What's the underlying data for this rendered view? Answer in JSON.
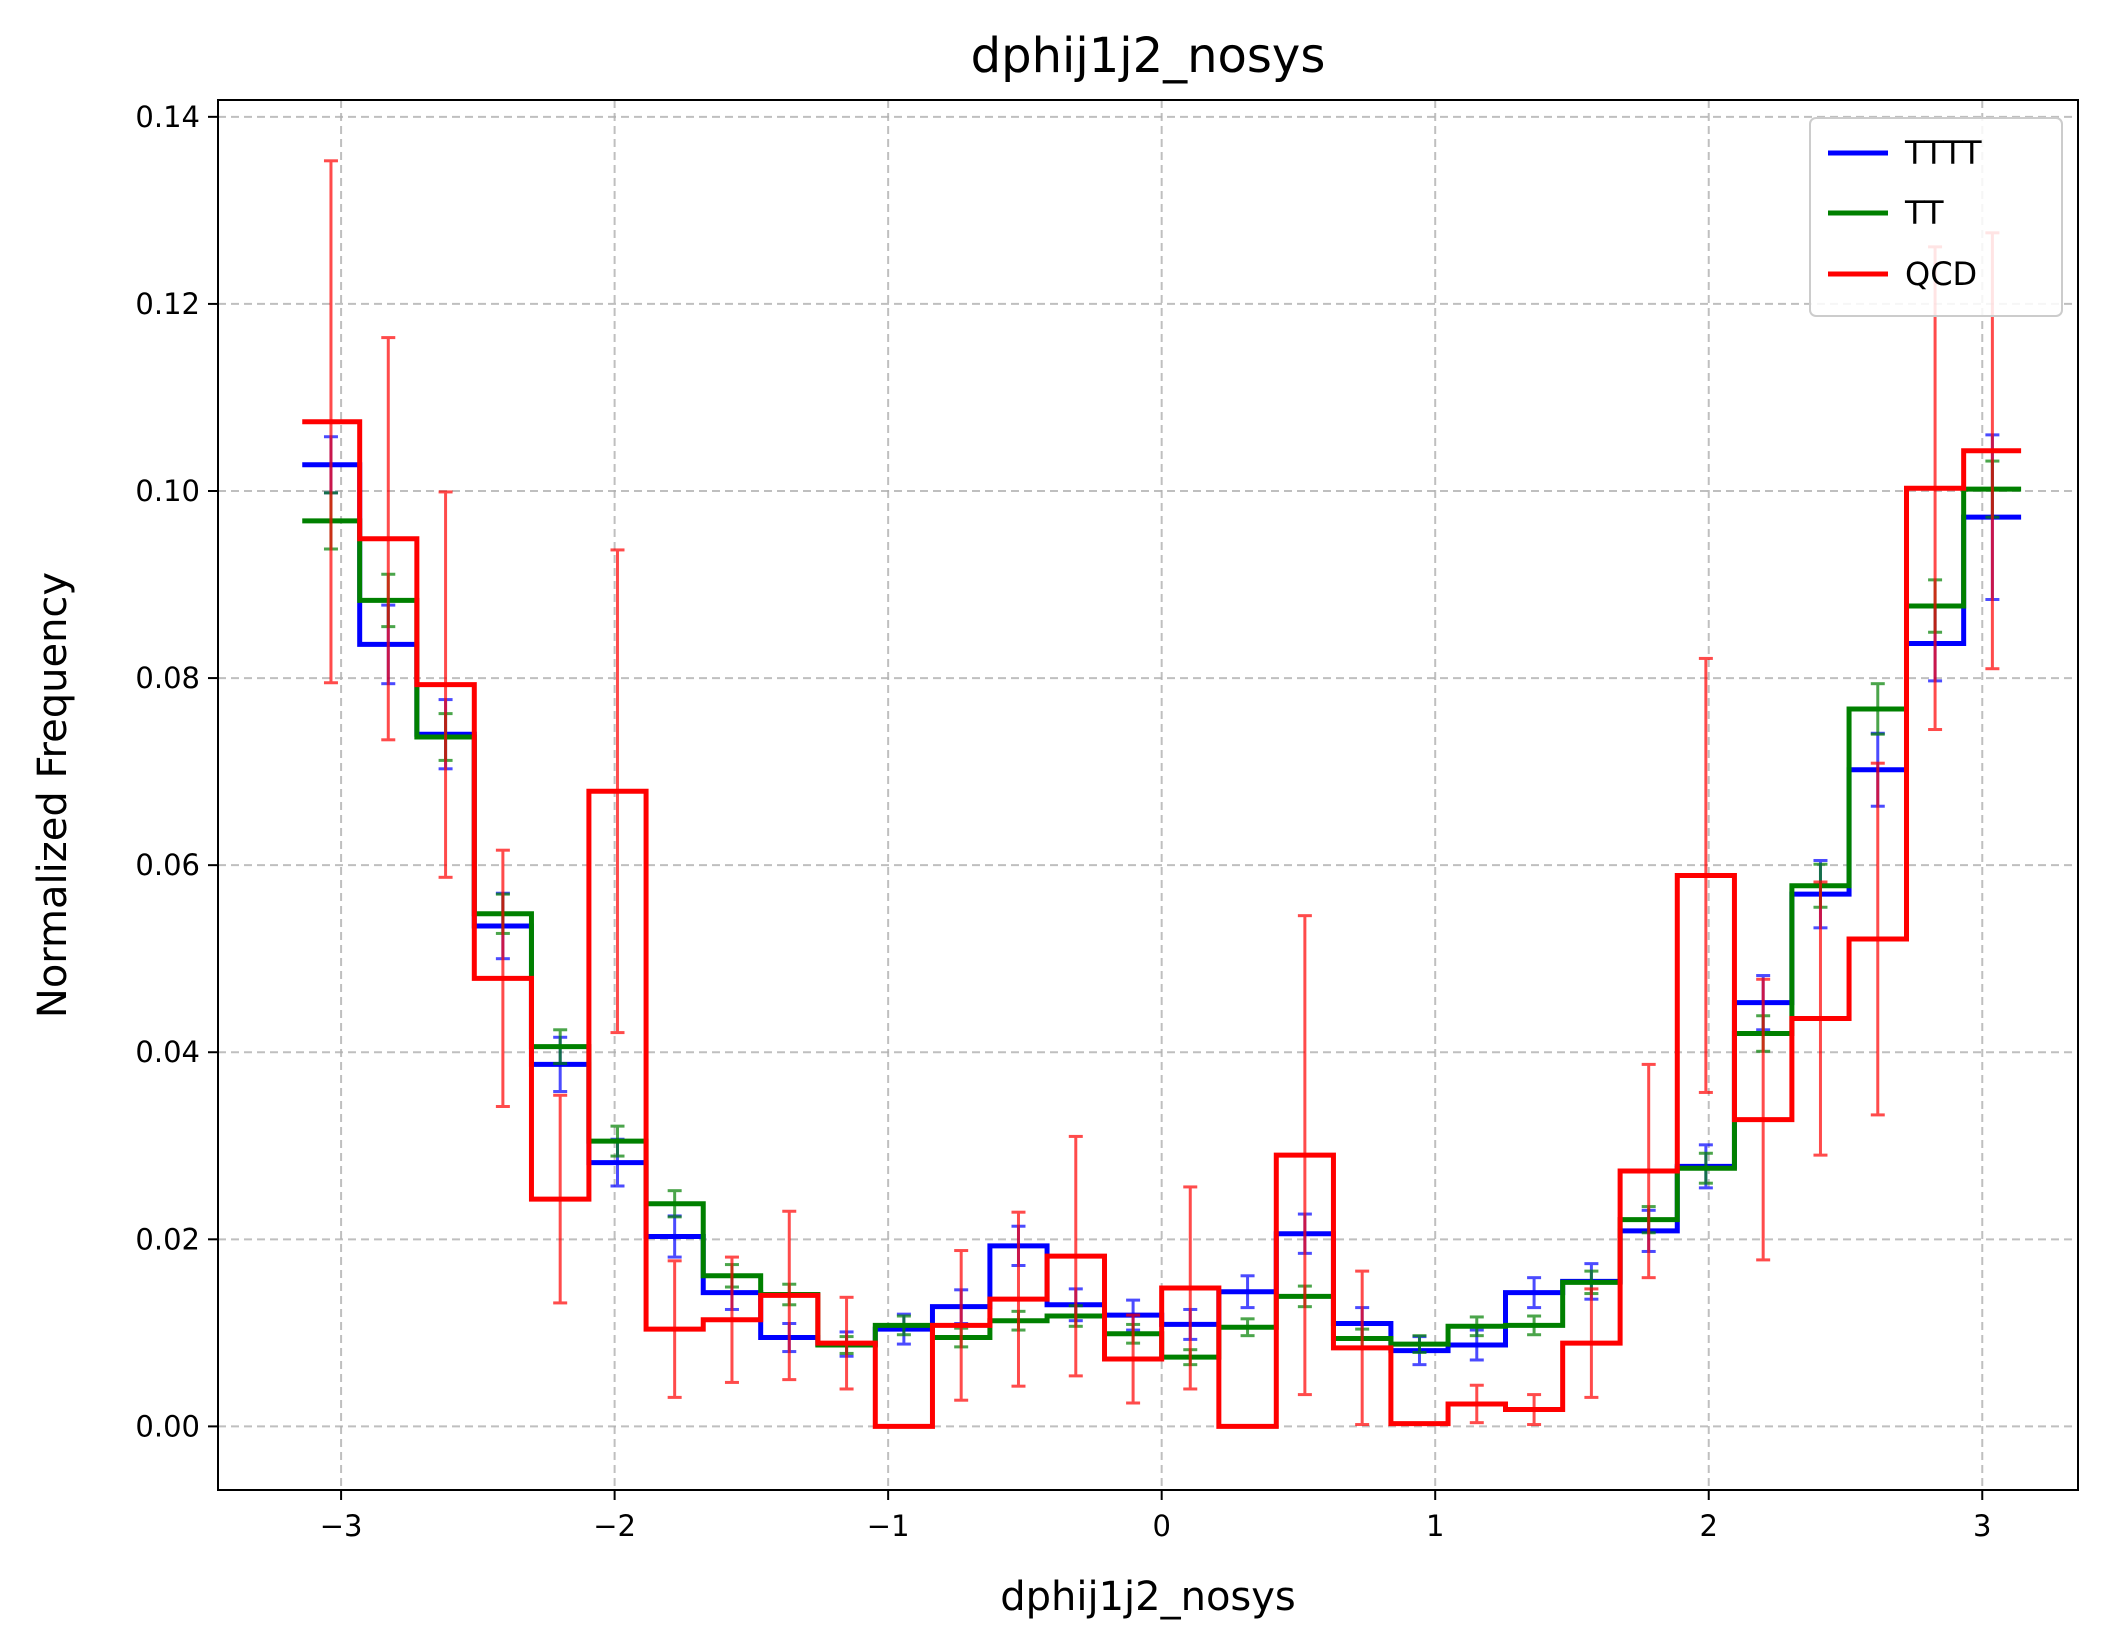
{
  "chart_data": {
    "type": "line",
    "title": "dphij1j2_nosys",
    "xlabel": "dphij1j2_nosys",
    "ylabel": "Normalized Frequency",
    "xlim": [
      -3.45,
      3.35
    ],
    "ylim": [
      -0.0068,
      0.1418
    ],
    "xticks": [
      -3,
      -2,
      -1,
      0,
      1,
      2,
      3
    ],
    "xtick_labels": [
      "−3",
      "−2",
      "−1",
      "0",
      "1",
      "2",
      "3"
    ],
    "yticks": [
      0.0,
      0.02,
      0.04,
      0.06,
      0.08,
      0.1,
      0.12,
      0.14
    ],
    "ytick_labels": [
      "0.00",
      "0.02",
      "0.04",
      "0.06",
      "0.08",
      "0.10",
      "0.12",
      "0.14"
    ],
    "grid": true,
    "legend_position": "upper right",
    "bin_edges": [
      -3.142,
      -2.932,
      -2.723,
      -2.513,
      -2.304,
      -2.094,
      -1.885,
      -1.676,
      -1.466,
      -1.257,
      -1.047,
      -0.838,
      -0.628,
      -0.419,
      -0.209,
      0.0,
      0.209,
      0.419,
      0.628,
      0.838,
      1.047,
      1.257,
      1.466,
      1.676,
      1.885,
      2.094,
      2.304,
      2.513,
      2.723,
      2.932,
      3.142
    ],
    "series": [
      {
        "name": "TTTT",
        "color": "#0000ff",
        "values": [
          0.1028,
          0.0836,
          0.074,
          0.0535,
          0.0387,
          0.0282,
          0.0203,
          0.0143,
          0.0095,
          0.0088,
          0.0104,
          0.0128,
          0.0193,
          0.013,
          0.0119,
          0.0109,
          0.0144,
          0.0206,
          0.011,
          0.0081,
          0.0087,
          0.0143,
          0.0155,
          0.0209,
          0.0278,
          0.0453,
          0.0569,
          0.0702,
          0.0837,
          0.0972
        ],
        "errors": [
          0.003,
          0.0042,
          0.0037,
          0.0035,
          0.0029,
          0.0025,
          0.0022,
          0.0018,
          0.0015,
          0.0013,
          0.0016,
          0.0018,
          0.0021,
          0.0017,
          0.0016,
          0.0016,
          0.0017,
          0.0021,
          0.0017,
          0.0015,
          0.0016,
          0.0016,
          0.0019,
          0.0022,
          0.0023,
          0.0029,
          0.0036,
          0.0039,
          0.004,
          0.0088
        ]
      },
      {
        "name": "TT",
        "color": "#008000",
        "values": [
          0.0968,
          0.0883,
          0.0737,
          0.0548,
          0.0406,
          0.0305,
          0.0238,
          0.0161,
          0.0141,
          0.0087,
          0.0108,
          0.0095,
          0.0113,
          0.0118,
          0.0099,
          0.0074,
          0.0106,
          0.0139,
          0.0094,
          0.0088,
          0.0107,
          0.0108,
          0.0154,
          0.0221,
          0.0276,
          0.042,
          0.0578,
          0.0767,
          0.0877,
          0.1002
        ],
        "errors": [
          0.003,
          0.0028,
          0.0025,
          0.0021,
          0.0018,
          0.0016,
          0.0014,
          0.0012,
          0.0011,
          0.0009,
          0.001,
          0.001,
          0.001,
          0.0011,
          0.001,
          0.0008,
          0.0009,
          0.0011,
          0.001,
          0.0009,
          0.001,
          0.001,
          0.0012,
          0.0014,
          0.0016,
          0.0019,
          0.0023,
          0.0027,
          0.0028,
          0.003
        ]
      },
      {
        "name": "QCD",
        "color": "#ff0000",
        "values": [
          0.1074,
          0.0949,
          0.0793,
          0.0479,
          0.0243,
          0.0679,
          0.0104,
          0.0114,
          0.014,
          0.0089,
          0.0,
          0.0108,
          0.0136,
          0.0182,
          0.0072,
          0.0148,
          0.0,
          0.029,
          0.0084,
          0.0003,
          0.0024,
          0.0018,
          0.0089,
          0.0273,
          0.0589,
          0.0328,
          0.0436,
          0.0521,
          0.1003,
          0.1043
        ],
        "errors": [
          0.0279,
          0.0215,
          0.0206,
          0.0137,
          0.0111,
          0.0258,
          0.0073,
          0.0067,
          0.009,
          0.0049,
          0.0,
          0.008,
          0.0093,
          0.0128,
          0.0047,
          0.0108,
          0.0,
          0.0256,
          0.0082,
          0.0,
          0.002,
          0.0016,
          0.0058,
          0.0114,
          0.0232,
          0.015,
          0.0146,
          0.0188,
          0.0258,
          0.0233
        ]
      }
    ]
  }
}
